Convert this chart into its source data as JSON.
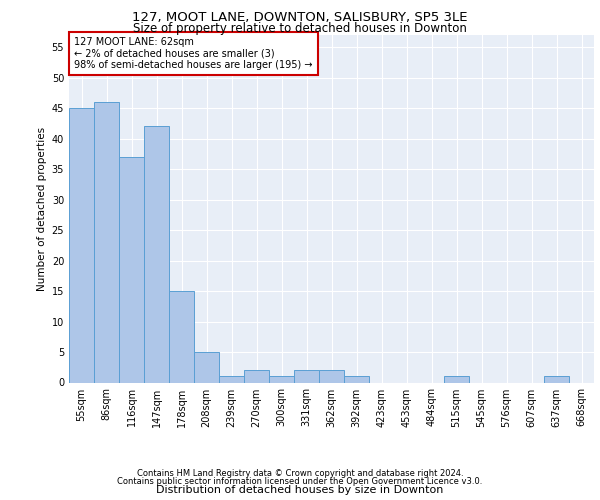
{
  "title1": "127, MOOT LANE, DOWNTON, SALISBURY, SP5 3LE",
  "title2": "Size of property relative to detached houses in Downton",
  "xlabel": "Distribution of detached houses by size in Downton",
  "ylabel": "Number of detached properties",
  "footer1": "Contains HM Land Registry data © Crown copyright and database right 2024.",
  "footer2": "Contains public sector information licensed under the Open Government Licence v3.0.",
  "annotation_line1": "127 MOOT LANE: 62sqm",
  "annotation_line2": "← 2% of detached houses are smaller (3)",
  "annotation_line3": "98% of semi-detached houses are larger (195) →",
  "bar_color": "#aec6e8",
  "bar_edge_color": "#5a9fd4",
  "background_color": "#e8eef7",
  "annotation_box_color": "#ffffff",
  "annotation_border_color": "#cc0000",
  "grid_color": "#ffffff",
  "categories": [
    "55sqm",
    "86sqm",
    "116sqm",
    "147sqm",
    "178sqm",
    "208sqm",
    "239sqm",
    "270sqm",
    "300sqm",
    "331sqm",
    "362sqm",
    "392sqm",
    "423sqm",
    "453sqm",
    "484sqm",
    "515sqm",
    "545sqm",
    "576sqm",
    "607sqm",
    "637sqm",
    "668sqm"
  ],
  "values": [
    45,
    46,
    37,
    42,
    15,
    5,
    1,
    2,
    1,
    2,
    2,
    1,
    0,
    0,
    0,
    1,
    0,
    0,
    0,
    1,
    0
  ],
  "ylim": [
    0,
    57
  ],
  "yticks": [
    0,
    5,
    10,
    15,
    20,
    25,
    30,
    35,
    40,
    45,
    50,
    55
  ],
  "title1_fontsize": 9.5,
  "title2_fontsize": 8.5,
  "xlabel_fontsize": 8,
  "ylabel_fontsize": 7.5,
  "tick_fontsize": 7,
  "footer_fontsize": 6,
  "annotation_fontsize": 7
}
